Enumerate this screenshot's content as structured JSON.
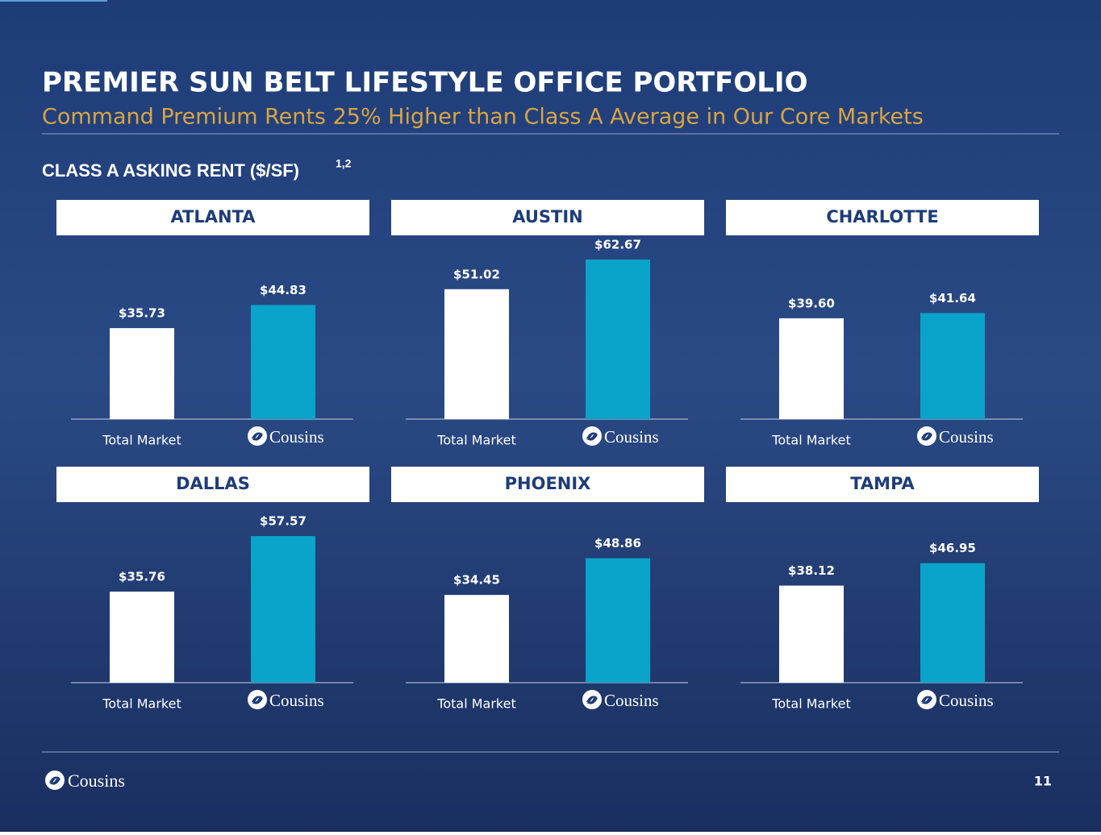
{
  "title": "PREMIER SUN BELT LIFESTYLE OFFICE PORTFOLIO",
  "subtitle": "Command Premium Rents 25% Higher than Class A Average in Our Core Markets",
  "section_title": "CLASS A ASKING RENT ($/SF)",
  "section_footnotes": "1,2",
  "logo_text": "Cousins",
  "page_number": "11",
  "chart_data": [
    {
      "type": "bar",
      "title": "ATLANTA",
      "categories": [
        "Total Market",
        "Cousins"
      ],
      "values": [
        35.73,
        44.83
      ],
      "value_labels": [
        "$35.73",
        "$44.83"
      ],
      "colors": [
        "#ffffff",
        "#0aa3c9"
      ]
    },
    {
      "type": "bar",
      "title": "AUSTIN",
      "categories": [
        "Total Market",
        "Cousins"
      ],
      "values": [
        51.02,
        62.67
      ],
      "value_labels": [
        "$51.02",
        "$62.67"
      ],
      "colors": [
        "#ffffff",
        "#0aa3c9"
      ]
    },
    {
      "type": "bar",
      "title": "CHARLOTTE",
      "categories": [
        "Total Market",
        "Cousins"
      ],
      "values": [
        39.6,
        41.64
      ],
      "value_labels": [
        "$39.60",
        "$41.64"
      ],
      "colors": [
        "#ffffff",
        "#0aa3c9"
      ]
    },
    {
      "type": "bar",
      "title": "DALLAS",
      "categories": [
        "Total Market",
        "Cousins"
      ],
      "values": [
        35.76,
        57.57
      ],
      "value_labels": [
        "$35.76",
        "$57.57"
      ],
      "colors": [
        "#ffffff",
        "#0aa3c9"
      ]
    },
    {
      "type": "bar",
      "title": "PHOENIX",
      "categories": [
        "Total Market",
        "Cousins"
      ],
      "values": [
        34.45,
        48.86
      ],
      "value_labels": [
        "$34.45",
        "$48.86"
      ],
      "colors": [
        "#ffffff",
        "#0aa3c9"
      ]
    },
    {
      "type": "bar",
      "title": "TAMPA",
      "categories": [
        "Total Market",
        "Cousins"
      ],
      "values": [
        38.12,
        46.95
      ],
      "value_labels": [
        "$38.12",
        "$46.95"
      ],
      "colors": [
        "#ffffff",
        "#0aa3c9"
      ]
    }
  ]
}
